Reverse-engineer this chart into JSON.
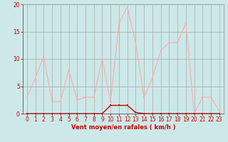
{
  "x": [
    0,
    1,
    2,
    3,
    4,
    5,
    6,
    7,
    8,
    9,
    10,
    11,
    12,
    13,
    14,
    15,
    16,
    17,
    18,
    19,
    20,
    21,
    22,
    23
  ],
  "y_rafales": [
    3,
    6.5,
    10.5,
    2.2,
    2.2,
    8,
    2.5,
    3,
    3,
    10,
    2.2,
    16.5,
    19.5,
    13,
    3,
    6.5,
    11.5,
    13,
    13,
    16.5,
    0,
    3,
    3,
    0.5
  ],
  "y_moyen": [
    0,
    0,
    0,
    0,
    0,
    0,
    0,
    0,
    0,
    0,
    1.5,
    1.5,
    1.5,
    0.2,
    0,
    0,
    0,
    0,
    0,
    0,
    0,
    0,
    0,
    0
  ],
  "line_color_rafales": "#ffaaaa",
  "line_color_moyen": "#cc0000",
  "marker_color_rafales": "#ffaaaa",
  "marker_color_moyen": "#cc0000",
  "bg_color": "#cce8e8",
  "grid_color": "#aaaaaa",
  "xlabel": "Vent moyen/en rafales ( km/h )",
  "xlabel_color": "#cc0000",
  "tick_color": "#cc0000",
  "ylim": [
    0,
    20
  ],
  "xlim": [
    -0.5,
    23.5
  ],
  "yticks": [
    0,
    5,
    10,
    15,
    20
  ],
  "xticks": [
    0,
    1,
    2,
    3,
    4,
    5,
    6,
    7,
    8,
    9,
    10,
    11,
    12,
    13,
    14,
    15,
    16,
    17,
    18,
    19,
    20,
    21,
    22,
    23
  ]
}
